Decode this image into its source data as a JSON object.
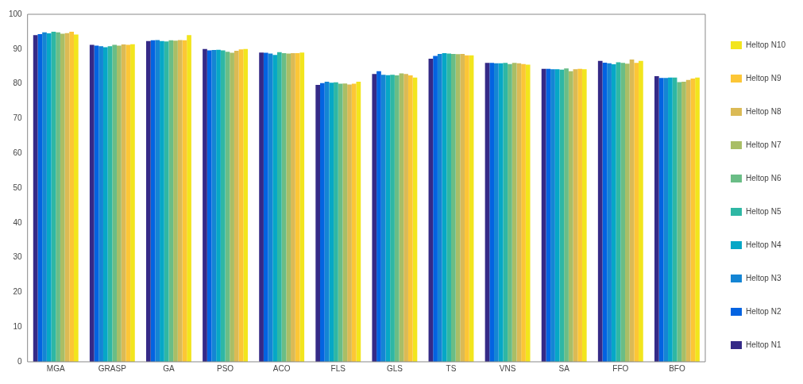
{
  "chart_data": {
    "type": "bar",
    "categories": [
      "MGA",
      "GRASP",
      "GA",
      "PSO",
      "ACO",
      "FLS",
      "GLS",
      "TS",
      "VNS",
      "SA",
      "FFO",
      "BFO"
    ],
    "ylim": [
      0,
      100
    ],
    "yticks": [
      0,
      10,
      20,
      30,
      40,
      50,
      60,
      70,
      80,
      90,
      100
    ],
    "grid": false,
    "legend": "right",
    "series": [
      {
        "name": "Heltop N1",
        "color": "#352a87",
        "values": [
          94.0,
          91.2,
          92.3,
          90.0,
          89.0,
          79.7,
          82.8,
          87.2,
          86.0,
          84.3,
          86.6,
          82.2
        ]
      },
      {
        "name": "Heltop N2",
        "color": "#0363e1",
        "values": [
          94.3,
          91.0,
          92.5,
          89.6,
          88.9,
          80.2,
          83.6,
          88.0,
          86.0,
          84.3,
          86.1,
          81.7
        ]
      },
      {
        "name": "Heltop N3",
        "color": "#1485d4",
        "values": [
          94.8,
          90.8,
          92.6,
          89.7,
          88.7,
          80.6,
          82.6,
          88.6,
          85.9,
          84.2,
          85.9,
          81.7
        ]
      },
      {
        "name": "Heltop N4",
        "color": "#06a7c6",
        "values": [
          94.5,
          90.5,
          92.3,
          89.8,
          88.3,
          80.3,
          82.5,
          88.8,
          85.9,
          84.2,
          85.6,
          81.8
        ]
      },
      {
        "name": "Heltop N5",
        "color": "#2eb7a4",
        "values": [
          95.0,
          90.8,
          92.2,
          89.6,
          89.1,
          80.4,
          82.6,
          88.7,
          86.0,
          84.1,
          86.2,
          81.8
        ]
      },
      {
        "name": "Heltop N6",
        "color": "#6abd86",
        "values": [
          94.8,
          91.2,
          92.5,
          89.2,
          88.8,
          80.0,
          82.4,
          88.6,
          85.7,
          84.4,
          86.0,
          80.5
        ]
      },
      {
        "name": "Heltop N7",
        "color": "#a9be66",
        "values": [
          94.4,
          91.0,
          92.4,
          88.9,
          88.7,
          80.1,
          83.0,
          88.5,
          86.0,
          83.6,
          85.8,
          80.6
        ]
      },
      {
        "name": "Heltop N8",
        "color": "#dbba55",
        "values": [
          94.6,
          91.3,
          92.6,
          89.5,
          88.8,
          79.8,
          82.8,
          88.6,
          85.9,
          84.2,
          87.0,
          81.1
        ]
      },
      {
        "name": "Heltop N9",
        "color": "#fcc636",
        "values": [
          95.0,
          91.2,
          92.5,
          89.9,
          88.8,
          80.0,
          82.4,
          88.2,
          85.7,
          84.3,
          86.0,
          81.5
        ]
      },
      {
        "name": "Heltop N10",
        "color": "#f2e51d",
        "values": [
          94.2,
          91.4,
          94.0,
          90.0,
          89.0,
          80.6,
          81.8,
          88.2,
          85.5,
          84.2,
          86.6,
          81.8
        ]
      }
    ]
  }
}
